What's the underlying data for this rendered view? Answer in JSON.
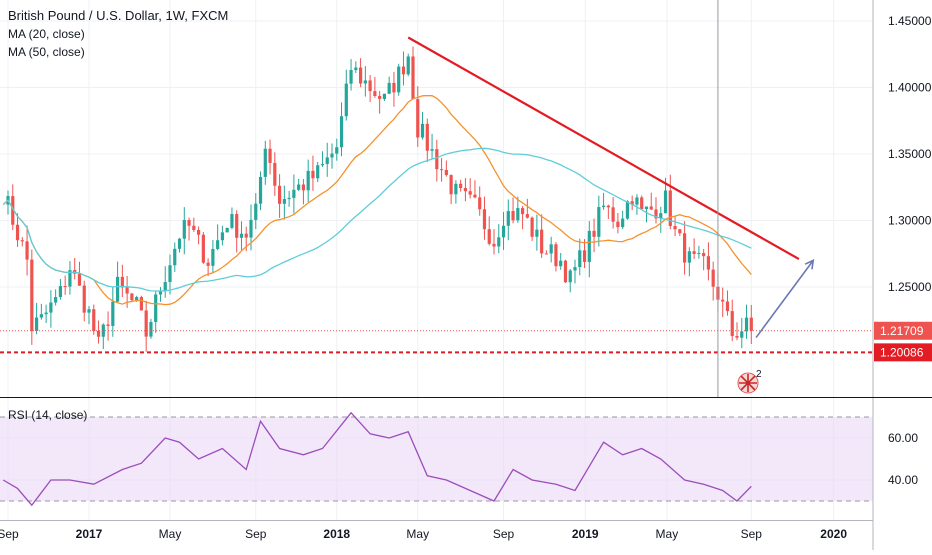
{
  "header": {
    "symbol": "British Pound / U.S. Dollar, 1W, FXCM",
    "ma20_label": "MA (20, close)",
    "ma50_label": "MA (50, close)"
  },
  "rsi_panel": {
    "label": "RSI (14, close)"
  },
  "event_badge": {
    "count": "2"
  },
  "colors": {
    "up": "#26a69a",
    "down": "#ef5350",
    "ma20": "#f5922f",
    "ma50": "#5fcdd9",
    "trendline": "#e31b23",
    "projection": "#6b78b5",
    "support": "#e31b23",
    "rsi": "#9c4dbb",
    "rsi_band": "#ead9f7",
    "crosshair": "#9598a1"
  },
  "chart_data": [
    {
      "type": "candlestick",
      "title": "British Pound / U.S. Dollar, 1W, FXCM",
      "x_axis_labels": [
        "Sep",
        "2017",
        "May",
        "Sep",
        "2018",
        "May",
        "Sep",
        "2019",
        "May",
        "Sep",
        "2020"
      ],
      "y_axis_labels": [
        "1.45000",
        "1.40000",
        "1.35000",
        "1.30000",
        "1.25000"
      ],
      "ylim": [
        1.18,
        1.46
      ],
      "grid": true,
      "price_labels": {
        "last": "1.21709",
        "support": "1.20086"
      },
      "last_price": 1.21709,
      "support_level": 1.20086,
      "trendline": {
        "from": {
          "x": "2018-04-16",
          "y": 1.4376
        },
        "to": {
          "x": "2019-11-11",
          "y": 1.271
        }
      },
      "projection_arrow": {
        "from": {
          "x": "2019-09-09",
          "y": 1.212
        },
        "to": {
          "x": "2019-12-02",
          "y": 1.27
        }
      },
      "crosshair_date": "2019-07-15",
      "close_anchors": [
        [
          "2016-08-29",
          1.321
        ],
        [
          "2016-10-03",
          1.27
        ],
        [
          "2016-10-10",
          1.22
        ],
        [
          "2016-10-24",
          1.225
        ],
        [
          "2016-11-21",
          1.245
        ],
        [
          "2016-12-05",
          1.265
        ],
        [
          "2017-01-02",
          1.23
        ],
        [
          "2017-01-16",
          1.205
        ],
        [
          "2017-02-13",
          1.25
        ],
        [
          "2017-03-13",
          1.235
        ],
        [
          "2017-03-27",
          1.215
        ],
        [
          "2017-04-17",
          1.25
        ],
        [
          "2017-05-15",
          1.29
        ],
        [
          "2017-05-29",
          1.295
        ],
        [
          "2017-06-26",
          1.27
        ],
        [
          "2017-07-24",
          1.3
        ],
        [
          "2017-08-21",
          1.29
        ],
        [
          "2017-09-04",
          1.305
        ],
        [
          "2017-09-18",
          1.36
        ],
        [
          "2017-10-09",
          1.315
        ],
        [
          "2017-11-06",
          1.325
        ],
        [
          "2017-12-04",
          1.335
        ],
        [
          "2018-01-01",
          1.355
        ],
        [
          "2018-01-22",
          1.415
        ],
        [
          "2018-02-19",
          1.4
        ],
        [
          "2018-03-12",
          1.39
        ],
        [
          "2018-04-02",
          1.41
        ],
        [
          "2018-04-16",
          1.425
        ],
        [
          "2018-04-30",
          1.37
        ],
        [
          "2018-05-28",
          1.345
        ],
        [
          "2018-06-25",
          1.32
        ],
        [
          "2018-07-23",
          1.31
        ],
        [
          "2018-08-20",
          1.285
        ],
        [
          "2018-09-03",
          1.305
        ],
        [
          "2018-10-01",
          1.305
        ],
        [
          "2018-10-29",
          1.28
        ],
        [
          "2018-11-26",
          1.27
        ],
        [
          "2018-12-10",
          1.255
        ],
        [
          "2019-01-07",
          1.285
        ],
        [
          "2019-01-28",
          1.31
        ],
        [
          "2019-02-18",
          1.3
        ],
        [
          "2019-03-11",
          1.32
        ],
        [
          "2019-03-25",
          1.305
        ],
        [
          "2019-04-15",
          1.31
        ],
        [
          "2019-04-29",
          1.315
        ],
        [
          "2019-05-13",
          1.29
        ],
        [
          "2019-06-03",
          1.27
        ],
        [
          "2019-06-24",
          1.265
        ],
        [
          "2019-07-15",
          1.245
        ],
        [
          "2019-08-05",
          1.215
        ],
        [
          "2019-08-26",
          1.22
        ],
        [
          "2019-09-02",
          1.2171
        ]
      ],
      "series": [
        {
          "name": "MA (20, close)",
          "color": "#f5922f",
          "smoothing_period": 20
        },
        {
          "name": "MA (50, close)",
          "color": "#5fcdd9",
          "smoothing_period": 50
        }
      ]
    },
    {
      "type": "line",
      "title": "RSI (14, close)",
      "y_axis_labels": [
        "60.00",
        "40.00"
      ],
      "ylim": [
        20,
        78
      ],
      "band": [
        30,
        70
      ],
      "points": [
        [
          "2016-08-29",
          40
        ],
        [
          "2016-09-19",
          36
        ],
        [
          "2016-10-10",
          28
        ],
        [
          "2016-11-07",
          40
        ],
        [
          "2016-12-05",
          40
        ],
        [
          "2017-01-09",
          38
        ],
        [
          "2017-02-20",
          45
        ],
        [
          "2017-03-20",
          48
        ],
        [
          "2017-04-24",
          60
        ],
        [
          "2017-05-15",
          58
        ],
        [
          "2017-06-12",
          50
        ],
        [
          "2017-07-17",
          55
        ],
        [
          "2017-08-21",
          45
        ],
        [
          "2017-09-11",
          68
        ],
        [
          "2017-10-09",
          55
        ],
        [
          "2017-11-13",
          52
        ],
        [
          "2017-12-11",
          55
        ],
        [
          "2018-01-22",
          72
        ],
        [
          "2018-02-19",
          62
        ],
        [
          "2018-03-19",
          60
        ],
        [
          "2018-04-16",
          63
        ],
        [
          "2018-05-14",
          42
        ],
        [
          "2018-06-11",
          40
        ],
        [
          "2018-07-16",
          35
        ],
        [
          "2018-08-20",
          30
        ],
        [
          "2018-09-17",
          45
        ],
        [
          "2018-10-15",
          40
        ],
        [
          "2018-11-19",
          38
        ],
        [
          "2018-12-17",
          35
        ],
        [
          "2019-01-28",
          58
        ],
        [
          "2019-02-25",
          52
        ],
        [
          "2019-03-25",
          55
        ],
        [
          "2019-04-22",
          50
        ],
        [
          "2019-05-27",
          40
        ],
        [
          "2019-06-24",
          38
        ],
        [
          "2019-07-22",
          35
        ],
        [
          "2019-08-12",
          30
        ],
        [
          "2019-09-02",
          37
        ]
      ]
    }
  ]
}
